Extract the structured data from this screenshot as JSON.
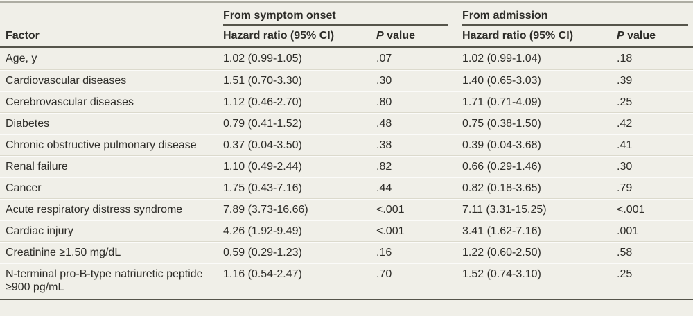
{
  "colors": {
    "background": "#f0efe8",
    "text": "#2d2c28",
    "rule_dark": "#56554b",
    "rule_top": "#aeada3",
    "row_divider": "#dcdacd"
  },
  "table": {
    "group_headers": [
      {
        "label": "From symptom onset"
      },
      {
        "label": "From admission"
      }
    ],
    "column_headers": {
      "factor": "Factor",
      "hazard_ratio": "Hazard ratio (95% CI)",
      "p_italic": "P",
      "p_rest": " value"
    },
    "rows": [
      {
        "factor": "Age, y",
        "hr_onset": "1.02 (0.99-1.05)",
        "p_onset": ".07",
        "hr_admission": "1.02 (0.99-1.04)",
        "p_admission": ".18"
      },
      {
        "factor": "Cardiovascular diseases",
        "hr_onset": "1.51 (0.70-3.30)",
        "p_onset": ".30",
        "hr_admission": "1.40 (0.65-3.03)",
        "p_admission": ".39"
      },
      {
        "factor": "Cerebrovascular diseases",
        "hr_onset": "1.12 (0.46-2.70)",
        "p_onset": ".80",
        "hr_admission": "1.71 (0.71-4.09)",
        "p_admission": ".25"
      },
      {
        "factor": "Diabetes",
        "hr_onset": "0.79 (0.41-1.52)",
        "p_onset": ".48",
        "hr_admission": "0.75 (0.38-1.50)",
        "p_admission": ".42"
      },
      {
        "factor": "Chronic obstructive pulmonary disease",
        "hr_onset": "0.37 (0.04-3.50)",
        "p_onset": ".38",
        "hr_admission": "0.39 (0.04-3.68)",
        "p_admission": ".41"
      },
      {
        "factor": "Renal failure",
        "hr_onset": "1.10 (0.49-2.44)",
        "p_onset": ".82",
        "hr_admission": "0.66 (0.29-1.46)",
        "p_admission": ".30"
      },
      {
        "factor": "Cancer",
        "hr_onset": "1.75 (0.43-7.16)",
        "p_onset": ".44",
        "hr_admission": "0.82 (0.18-3.65)",
        "p_admission": ".79"
      },
      {
        "factor": "Acute respiratory distress syndrome",
        "hr_onset": "7.89 (3.73-16.66)",
        "p_onset": "<.001",
        "hr_admission": "7.11 (3.31-15.25)",
        "p_admission": "<.001"
      },
      {
        "factor": "Cardiac injury",
        "hr_onset": "4.26 (1.92-9.49)",
        "p_onset": "<.001",
        "hr_admission": "3.41 (1.62-7.16)",
        "p_admission": ".001"
      },
      {
        "factor": "Creatinine ≥1.50 mg/dL",
        "hr_onset": "0.59 (0.29-1.23)",
        "p_onset": ".16",
        "hr_admission": "1.22 (0.60-2.50)",
        "p_admission": ".58"
      },
      {
        "factor": "N-terminal pro-B-type natriuretic peptide ≥900 pg/mL",
        "hr_onset": "1.16 (0.54-2.47)",
        "p_onset": ".70",
        "hr_admission": "1.52 (0.74-3.10)",
        "p_admission": ".25"
      }
    ]
  }
}
